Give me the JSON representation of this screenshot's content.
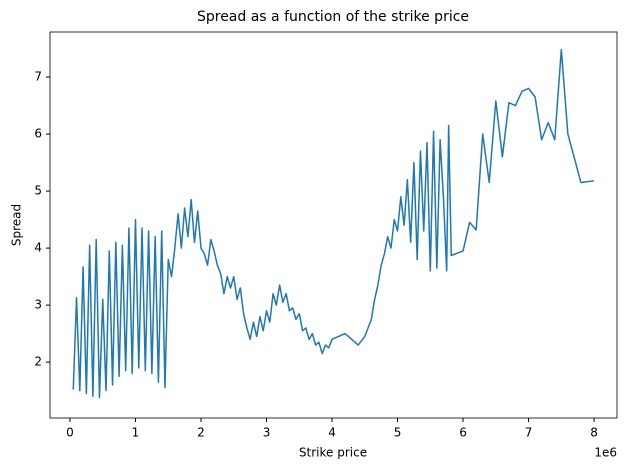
{
  "chart_data": {
    "type": "line",
    "title": "Spread as a function of the strike price",
    "xlabel": "Strike price",
    "ylabel": "Spread",
    "x_offset_label": "1e6",
    "x": [
      0.05,
      0.1,
      0.15,
      0.2,
      0.25,
      0.3,
      0.35,
      0.4,
      0.45,
      0.5,
      0.55,
      0.6,
      0.65,
      0.7,
      0.75,
      0.8,
      0.85,
      0.9,
      0.95,
      1.0,
      1.05,
      1.1,
      1.15,
      1.2,
      1.25,
      1.3,
      1.35,
      1.4,
      1.45,
      1.5,
      1.55,
      1.6,
      1.65,
      1.7,
      1.75,
      1.8,
      1.85,
      1.9,
      1.95,
      2.0,
      2.05,
      2.1,
      2.15,
      2.2,
      2.25,
      2.3,
      2.35,
      2.4,
      2.45,
      2.5,
      2.55,
      2.6,
      2.65,
      2.7,
      2.75,
      2.8,
      2.85,
      2.9,
      2.95,
      3.0,
      3.05,
      3.1,
      3.15,
      3.2,
      3.25,
      3.3,
      3.35,
      3.4,
      3.45,
      3.5,
      3.55,
      3.6,
      3.65,
      3.7,
      3.75,
      3.8,
      3.85,
      3.9,
      3.95,
      4.0,
      4.1,
      4.2,
      4.3,
      4.4,
      4.5,
      4.55,
      4.6,
      4.65,
      4.7,
      4.75,
      4.8,
      4.85,
      4.9,
      4.95,
      5.0,
      5.05,
      5.1,
      5.15,
      5.2,
      5.25,
      5.3,
      5.35,
      5.4,
      5.45,
      5.5,
      5.55,
      5.6,
      5.65,
      5.7,
      5.75,
      5.78,
      5.82,
      6.0,
      6.1,
      6.2,
      6.3,
      6.4,
      6.5,
      6.6,
      6.7,
      6.8,
      6.9,
      7.0,
      7.1,
      7.2,
      7.3,
      7.4,
      7.5,
      7.6,
      7.8,
      8.0
    ],
    "series": [
      {
        "name": "Spread",
        "color": "#1f77b4",
        "values": [
          1.52,
          3.13,
          1.5,
          3.67,
          1.45,
          4.05,
          1.4,
          4.15,
          1.38,
          3.1,
          1.5,
          3.95,
          1.6,
          4.1,
          1.75,
          4.05,
          1.85,
          4.35,
          1.8,
          4.5,
          1.9,
          4.35,
          1.85,
          4.3,
          1.8,
          4.2,
          1.65,
          4.3,
          1.55,
          3.8,
          3.5,
          4.0,
          4.6,
          4.0,
          4.7,
          4.2,
          4.85,
          4.1,
          4.65,
          4.0,
          3.9,
          3.7,
          4.15,
          3.95,
          3.7,
          3.55,
          3.2,
          3.5,
          3.3,
          3.5,
          3.1,
          3.3,
          2.85,
          2.6,
          2.4,
          2.7,
          2.45,
          2.8,
          2.55,
          2.9,
          2.7,
          3.2,
          3.0,
          3.35,
          3.05,
          3.2,
          2.9,
          2.95,
          2.75,
          2.85,
          2.55,
          2.6,
          2.4,
          2.5,
          2.3,
          2.35,
          2.15,
          2.3,
          2.25,
          2.4,
          2.45,
          2.5,
          2.4,
          2.3,
          2.45,
          2.6,
          2.75,
          3.1,
          3.35,
          3.7,
          3.9,
          4.2,
          4.0,
          4.5,
          4.3,
          4.9,
          4.4,
          5.2,
          4.1,
          5.5,
          3.8,
          5.7,
          4.3,
          5.85,
          3.6,
          6.05,
          3.65,
          5.9,
          4.9,
          3.6,
          6.15,
          3.87,
          3.95,
          4.45,
          4.32,
          6.0,
          5.15,
          6.58,
          5.6,
          6.55,
          6.5,
          6.75,
          6.8,
          6.65,
          5.9,
          6.2,
          5.9,
          7.48,
          6.0,
          5.15,
          5.18
        ]
      }
    ],
    "xlim": [
      -0.305,
      8.35
    ],
    "ylim": [
      1.02,
      7.79
    ],
    "xticks": [
      0,
      1,
      2,
      3,
      4,
      5,
      6,
      7,
      8
    ],
    "yticks": [
      2,
      3,
      4,
      5,
      6,
      7
    ],
    "grid": false
  }
}
